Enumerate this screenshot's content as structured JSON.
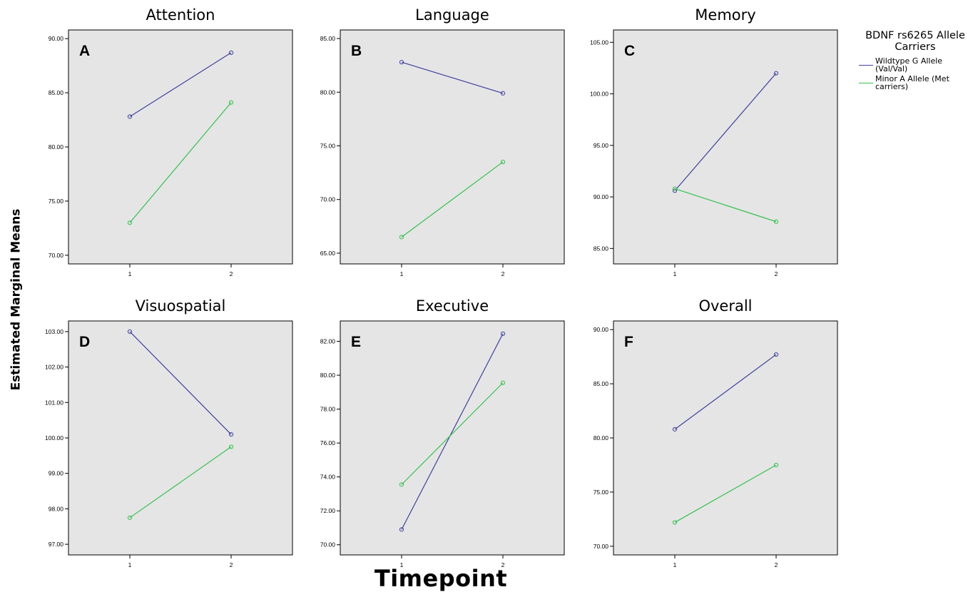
{
  "figure": {
    "y_label": "Estimated Marginal Means",
    "x_label": "Timepoint",
    "legend": {
      "title": "BDNF rs6265 Allele Carriers",
      "items": [
        {
          "label": "Wildtype G Allele (Val/Val)",
          "color": "#4040a0"
        },
        {
          "label": "Minor A Allele (Met carriers)",
          "color": "#33c24d"
        }
      ]
    },
    "colors": {
      "panel_bg": "#e5e5e5",
      "wildtype": "#4040a0",
      "minor": "#33c24d"
    }
  },
  "chart_data": [
    {
      "type": "line",
      "title": "Attention",
      "panel_letter": "A",
      "categories": [
        "1",
        "2"
      ],
      "ylim": [
        69.2,
        90.8
      ],
      "yticks": [
        "70.00",
        "75.00",
        "80.00",
        "85.00",
        "90.00"
      ],
      "series": [
        {
          "name": "Wildtype G Allele (Val/Val)",
          "values": [
            82.8,
            88.7
          ]
        },
        {
          "name": "Minor A Allele (Met carriers)",
          "values": [
            73.0,
            84.1
          ]
        }
      ]
    },
    {
      "type": "line",
      "title": "Language",
      "panel_letter": "B",
      "categories": [
        "1",
        "2"
      ],
      "ylim": [
        64.0,
        85.8
      ],
      "yticks": [
        "65.00",
        "70.00",
        "75.00",
        "80.00",
        "85.00"
      ],
      "series": [
        {
          "name": "Wildtype G Allele (Val/Val)",
          "values": [
            82.8,
            79.9
          ]
        },
        {
          "name": "Minor A Allele (Met carriers)",
          "values": [
            66.5,
            73.5
          ]
        }
      ]
    },
    {
      "type": "line",
      "title": "Memory",
      "panel_letter": "C",
      "categories": [
        "1",
        "2"
      ],
      "ylim": [
        83.5,
        106.2
      ],
      "yticks": [
        "85.00",
        "90.00",
        "95.00",
        "100.00",
        "105.00"
      ],
      "series": [
        {
          "name": "Wildtype G Allele (Val/Val)",
          "values": [
            90.6,
            102.0
          ]
        },
        {
          "name": "Minor A Allele (Met carriers)",
          "values": [
            90.8,
            87.6
          ]
        }
      ]
    },
    {
      "type": "line",
      "title": "Visuospatial",
      "panel_letter": "D",
      "categories": [
        "1",
        "2"
      ],
      "ylim": [
        96.7,
        103.3
      ],
      "yticks": [
        "97.00",
        "98.00",
        "99.00",
        "100.00",
        "101.00",
        "102.00",
        "103.00"
      ],
      "series": [
        {
          "name": "Wildtype G Allele (Val/Val)",
          "values": [
            103.0,
            100.1
          ]
        },
        {
          "name": "Minor A Allele (Met carriers)",
          "values": [
            97.75,
            99.75
          ]
        }
      ]
    },
    {
      "type": "line",
      "title": "Executive",
      "panel_letter": "E",
      "categories": [
        "1",
        "2"
      ],
      "ylim": [
        69.4,
        83.2
      ],
      "yticks": [
        "70.00",
        "72.00",
        "74.00",
        "76.00",
        "78.00",
        "80.00",
        "82.00"
      ],
      "series": [
        {
          "name": "Wildtype G Allele (Val/Val)",
          "values": [
            70.9,
            82.45
          ]
        },
        {
          "name": "Minor A Allele (Met carriers)",
          "values": [
            73.55,
            79.55
          ]
        }
      ]
    },
    {
      "type": "line",
      "title": "Overall",
      "panel_letter": "F",
      "categories": [
        "1",
        "2"
      ],
      "ylim": [
        69.2,
        90.8
      ],
      "yticks": [
        "70.00",
        "75.00",
        "80.00",
        "85.00",
        "90.00"
      ],
      "series": [
        {
          "name": "Wildtype G Allele (Val/Val)",
          "values": [
            80.8,
            87.7
          ]
        },
        {
          "name": "Minor A Allele (Met carriers)",
          "values": [
            72.2,
            77.5
          ]
        }
      ]
    }
  ]
}
